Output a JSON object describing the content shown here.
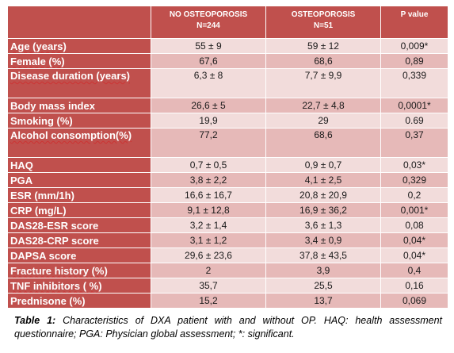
{
  "table": {
    "headers": [
      "",
      "NO OSTEOPOROSIS",
      "OSTEOPOROSIS",
      "P value"
    ],
    "subheaders": [
      "",
      "N=244",
      "N=51",
      ""
    ],
    "rows": [
      {
        "label": "Age (years)",
        "no_op": "55 ± 9",
        "op": "59 ± 12",
        "p": "0,009*"
      },
      {
        "label": "Female (%)",
        "no_op": "67,6",
        "op": "68,6",
        "p": "0,89"
      },
      {
        "label": "Disease duration (years)",
        "no_op": "6,3 ± 8",
        "op": "7,7 ± 9,9",
        "p": "0,339"
      },
      {
        "label": "Body mass index",
        "no_op": "26,6 ± 5",
        "op": "22,7 ± 4,8",
        "p": "0,0001*"
      },
      {
        "label": "Smoking (%)",
        "no_op": "19,9",
        "op": "29",
        "p": "0.69"
      },
      {
        "label": "Alcohol consomption(%)",
        "no_op": "77,2",
        "op": "68,6",
        "p": "0,37"
      },
      {
        "label": "HAQ",
        "no_op": "0,7 ± 0,5",
        "op": "0,9 ± 0,7",
        "p": "0,03*"
      },
      {
        "label": "PGA",
        "no_op": "3,8 ± 2,2",
        "op": "4,1 ± 2,5",
        "p": "0,329"
      },
      {
        "label": "ESR (mm/1h)",
        "no_op": "16,6 ± 16,7",
        "op": "20,8 ± 20,9",
        "p": "0,2"
      },
      {
        "label": "CRP (mg/L)",
        "no_op": "9,1 ± 12,8",
        "op": "16,9 ± 36,2",
        "p": "0,001*"
      },
      {
        "label": "DAS28-ESR score",
        "no_op": "3,2 ± 1,4",
        "op": "3,6 ± 1,3",
        "p": "0,08"
      },
      {
        "label": "DAS28-CRP score",
        "no_op": "3,1 ± 1,2",
        "op": "3,4 ± 0,9",
        "p": "0,04*"
      },
      {
        "label": "DAPSA score",
        "no_op": "29,6 ± 23,6",
        "op": "37,8 ± 43,5",
        "p": "0,04*"
      },
      {
        "label": "Fracture history (%)",
        "no_op": "2",
        "op": "3,9",
        "p": "0,4"
      },
      {
        "label": "TNF inhibitors ( %)",
        "no_op": "35,7",
        "op": "25,5",
        "p": "0,16"
      },
      {
        "label": "Prednisone (%)",
        "no_op": "15,2",
        "op": "13,7",
        "p": "0,069"
      }
    ]
  },
  "caption": {
    "lead": "Table 1:",
    "text": " Characteristics of DXA patient with and without OP. HAQ: health assessment questionnaire; PGA: Physician global assessment; *: significant."
  },
  "colors": {
    "header_bg": "#c0504d",
    "row_light": "#f2dcdb",
    "row_dark": "#e6b9b8"
  }
}
